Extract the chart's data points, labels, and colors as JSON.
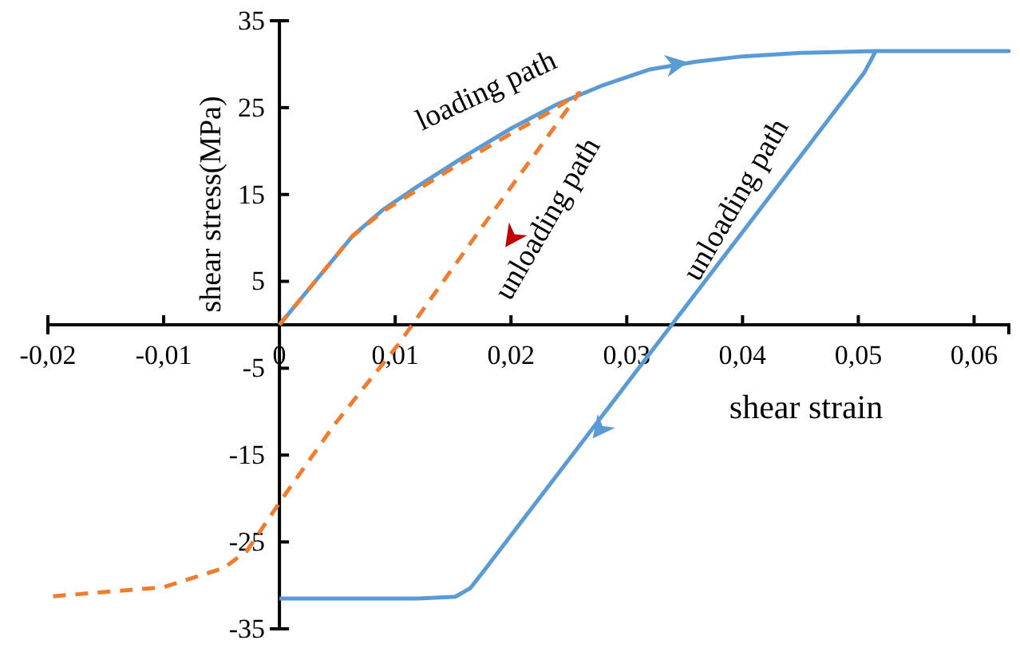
{
  "chart_data": {
    "type": "line",
    "xlabel": "shear strain",
    "ylabel": "shear stress(MPa)",
    "xlim": [
      -0.02,
      0.063
    ],
    "xticks": [
      {
        "value": -0.02,
        "label": "-0,02"
      },
      {
        "value": -0.01,
        "label": "-0,01"
      },
      {
        "value": 0,
        "label": "0"
      },
      {
        "value": 0.01,
        "label": "0,01"
      },
      {
        "value": 0.02,
        "label": "0,02"
      },
      {
        "value": 0.03,
        "label": "0,03"
      },
      {
        "value": 0.04,
        "label": "0,04"
      },
      {
        "value": 0.05,
        "label": "0,05"
      },
      {
        "value": 0.06,
        "label": "0,06"
      }
    ],
    "ylim": [
      -35,
      35
    ],
    "yticks": [
      -35,
      -25,
      -15,
      -5,
      5,
      15,
      25,
      35
    ],
    "grid": false,
    "marker": "none",
    "series": [
      {
        "color": "#5b9bd5",
        "line_style": "solid",
        "x": [
          0,
          0.0063,
          0.009,
          0.012,
          0.016,
          0.02,
          0.024,
          0.028,
          0.032,
          0.036,
          0.04,
          0.045,
          0.0515,
          0.063,
          0.0515,
          0.0505,
          0.0179,
          0.0165,
          0.0152,
          0.012,
          0.006,
          0
        ],
        "values": [
          0,
          10.2,
          13.3,
          16,
          19.4,
          22.6,
          25.4,
          27.6,
          29.4,
          30.3,
          30.9,
          31.3,
          31.5,
          31.5,
          31.5,
          29,
          -27.9,
          -30.3,
          -31.3,
          -31.5,
          -31.5,
          -31.5
        ]
      },
      {
        "color": "#ed7d31",
        "line_style": "dashed",
        "x": [
          0,
          0.0063,
          0.009,
          0.012,
          0.016,
          0.02,
          0.0235,
          0.0259,
          0.0172,
          0.0103,
          0.0048,
          0.0004,
          -0.0028,
          -0.0048,
          -0.01,
          -0.02
        ],
        "values": [
          0,
          10.2,
          13.1,
          15.6,
          18.9,
          22,
          24.6,
          26.7,
          10.7,
          -2.2,
          -11.4,
          -19.7,
          -26,
          -28,
          -30.2,
          -31.3
        ]
      }
    ],
    "annotations": [
      "loading path",
      "unloading path",
      "unloading path"
    ]
  }
}
